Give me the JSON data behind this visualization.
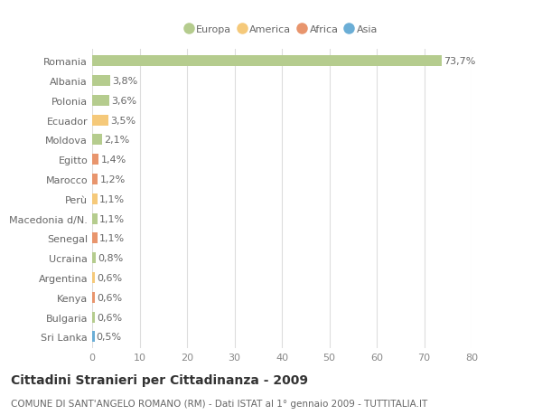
{
  "countries": [
    "Romania",
    "Albania",
    "Polonia",
    "Ecuador",
    "Moldova",
    "Egitto",
    "Marocco",
    "Perù",
    "Macedonia d/N.",
    "Senegal",
    "Ucraina",
    "Argentina",
    "Kenya",
    "Bulgaria",
    "Sri Lanka"
  ],
  "values": [
    73.7,
    3.8,
    3.6,
    3.5,
    2.1,
    1.4,
    1.2,
    1.1,
    1.1,
    1.1,
    0.8,
    0.6,
    0.6,
    0.6,
    0.5
  ],
  "labels": [
    "73,7%",
    "3,8%",
    "3,6%",
    "3,5%",
    "2,1%",
    "1,4%",
    "1,2%",
    "1,1%",
    "1,1%",
    "1,1%",
    "0,8%",
    "0,6%",
    "0,6%",
    "0,6%",
    "0,5%"
  ],
  "continents": [
    "Europa",
    "Europa",
    "Europa",
    "America",
    "Europa",
    "Africa",
    "Africa",
    "America",
    "Europa",
    "Africa",
    "Europa",
    "America",
    "Africa",
    "Europa",
    "Asia"
  ],
  "continent_colors": {
    "Europa": "#b5cc8e",
    "America": "#f5c97a",
    "Africa": "#e8956d",
    "Asia": "#6baed6"
  },
  "legend_entries": [
    {
      "label": "Europa",
      "color": "#b5cc8e"
    },
    {
      "label": "America",
      "color": "#f5c97a"
    },
    {
      "label": "Africa",
      "color": "#e8956d"
    },
    {
      "label": "Asia",
      "color": "#6baed6"
    }
  ],
  "title": "Cittadini Stranieri per Cittadinanza - 2009",
  "subtitle": "COMUNE DI SANT'ANGELO ROMANO (RM) - Dati ISTAT al 1° gennaio 2009 - TUTTITALIA.IT",
  "xlim": [
    0,
    80
  ],
  "xticks": [
    0,
    10,
    20,
    30,
    40,
    50,
    60,
    70,
    80
  ],
  "background_color": "#ffffff",
  "grid_color": "#dddddd",
  "bar_height": 0.55,
  "label_fontsize": 8,
  "tick_fontsize": 8,
  "title_fontsize": 10,
  "subtitle_fontsize": 7.5
}
